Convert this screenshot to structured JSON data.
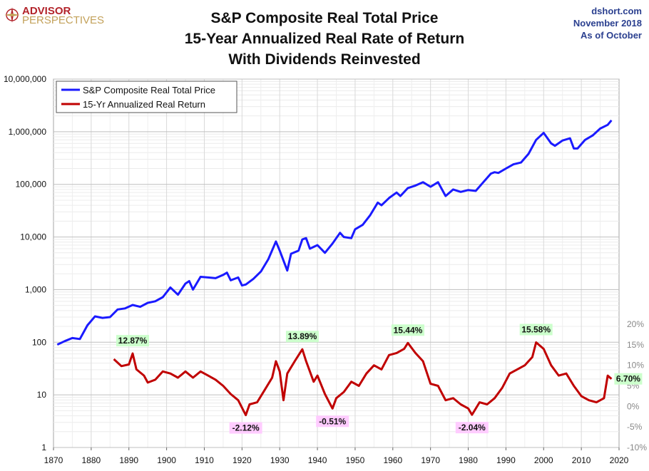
{
  "logo": {
    "line1": "ADVISOR",
    "line2": "PERSPECTIVES"
  },
  "source": {
    "site": "dshort.com",
    "date": "November 2018",
    "asof": "As of October"
  },
  "colors": {
    "price": "#1a1aff",
    "ret": "#c00000",
    "pos_bg": "#ccffcc",
    "neg_bg": "#ffccff",
    "grid": "#d9d9d9"
  },
  "chart_data": {
    "type": "line",
    "title": [
      "S&P Composite Real Total Price",
      "15-Year Annualized Real Rate of Return",
      "With Dividends Reinvested"
    ],
    "x_ticks": [
      "1870",
      "1880",
      "1890",
      "1900",
      "1910",
      "1920",
      "1930",
      "1940",
      "1950",
      "1960",
      "1970",
      "1980",
      "1990",
      "2000",
      "2010",
      "2020"
    ],
    "y_left_ticks": [
      "1",
      "10",
      "100",
      "1,000",
      "10,000",
      "100,000",
      "1,000,000",
      "10,000,000"
    ],
    "y_right_ticks": [
      "20%",
      "15%",
      "10%",
      "5%",
      "0%",
      "-5%",
      "-10%"
    ],
    "xlim": [
      1870,
      2020
    ],
    "y_left_scale": "log",
    "y_left_lim": [
      1,
      10000000
    ],
    "y_right_lim": [
      -10,
      20
    ],
    "legend_position": "top-left",
    "series": [
      {
        "name": "S&P Composite Real Total Price",
        "axis": "left",
        "points": [
          [
            1871,
            90
          ],
          [
            1873,
            105
          ],
          [
            1875,
            120
          ],
          [
            1877,
            115
          ],
          [
            1879,
            210
          ],
          [
            1881,
            310
          ],
          [
            1883,
            290
          ],
          [
            1885,
            300
          ],
          [
            1887,
            420
          ],
          [
            1889,
            440
          ],
          [
            1891,
            510
          ],
          [
            1893,
            470
          ],
          [
            1895,
            560
          ],
          [
            1897,
            600
          ],
          [
            1899,
            720
          ],
          [
            1901,
            1100
          ],
          [
            1903,
            800
          ],
          [
            1905,
            1300
          ],
          [
            1906,
            1450
          ],
          [
            1907,
            1000
          ],
          [
            1909,
            1750
          ],
          [
            1911,
            1700
          ],
          [
            1913,
            1650
          ],
          [
            1915,
            1900
          ],
          [
            1916,
            2100
          ],
          [
            1917,
            1500
          ],
          [
            1919,
            1700
          ],
          [
            1920,
            1200
          ],
          [
            1921,
            1250
          ],
          [
            1923,
            1600
          ],
          [
            1925,
            2200
          ],
          [
            1927,
            3800
          ],
          [
            1929,
            8200
          ],
          [
            1930,
            5500
          ],
          [
            1932,
            2300
          ],
          [
            1933,
            4800
          ],
          [
            1935,
            5500
          ],
          [
            1936,
            9000
          ],
          [
            1937,
            9500
          ],
          [
            1938,
            6000
          ],
          [
            1940,
            7000
          ],
          [
            1942,
            5000
          ],
          [
            1944,
            7500
          ],
          [
            1946,
            12000
          ],
          [
            1947,
            10000
          ],
          [
            1949,
            9500
          ],
          [
            1950,
            14000
          ],
          [
            1952,
            17000
          ],
          [
            1954,
            26000
          ],
          [
            1956,
            45000
          ],
          [
            1957,
            40000
          ],
          [
            1959,
            55000
          ],
          [
            1961,
            70000
          ],
          [
            1962,
            60000
          ],
          [
            1964,
            85000
          ],
          [
            1966,
            95000
          ],
          [
            1968,
            110000
          ],
          [
            1970,
            90000
          ],
          [
            1972,
            110000
          ],
          [
            1974,
            60000
          ],
          [
            1976,
            80000
          ],
          [
            1978,
            72000
          ],
          [
            1980,
            78000
          ],
          [
            1982,
            75000
          ],
          [
            1984,
            110000
          ],
          [
            1986,
            160000
          ],
          [
            1987,
            170000
          ],
          [
            1988,
            165000
          ],
          [
            1990,
            200000
          ],
          [
            1992,
            240000
          ],
          [
            1994,
            260000
          ],
          [
            1996,
            380000
          ],
          [
            1998,
            700000
          ],
          [
            2000,
            950000
          ],
          [
            2002,
            600000
          ],
          [
            2003,
            540000
          ],
          [
            2005,
            680000
          ],
          [
            2007,
            750000
          ],
          [
            2008,
            480000
          ],
          [
            2009,
            480000
          ],
          [
            2011,
            700000
          ],
          [
            2013,
            850000
          ],
          [
            2015,
            1150000
          ],
          [
            2017,
            1350000
          ],
          [
            2018,
            1650000
          ]
        ]
      },
      {
        "name": "15-Yr Annualized Real Return",
        "axis": "right",
        "points": [
          [
            1886,
            11.5
          ],
          [
            1888,
            9.8
          ],
          [
            1890,
            10.2
          ],
          [
            1891,
            12.87
          ],
          [
            1892,
            9.0
          ],
          [
            1894,
            7.5
          ],
          [
            1895,
            5.8
          ],
          [
            1897,
            6.5
          ],
          [
            1899,
            8.5
          ],
          [
            1901,
            8.0
          ],
          [
            1903,
            7.0
          ],
          [
            1905,
            8.5
          ],
          [
            1907,
            7.0
          ],
          [
            1909,
            8.5
          ],
          [
            1911,
            7.5
          ],
          [
            1913,
            6.5
          ],
          [
            1915,
            5.0
          ],
          [
            1917,
            3.0
          ],
          [
            1919,
            1.5
          ],
          [
            1921,
            -2.12
          ],
          [
            1922,
            0.5
          ],
          [
            1924,
            1.0
          ],
          [
            1926,
            4.0
          ],
          [
            1928,
            7.0
          ],
          [
            1929,
            11.0
          ],
          [
            1930,
            8.5
          ],
          [
            1931,
            1.5
          ],
          [
            1932,
            8.0
          ],
          [
            1934,
            11.0
          ],
          [
            1936,
            13.89
          ],
          [
            1937,
            11.0
          ],
          [
            1939,
            6.0
          ],
          [
            1940,
            7.5
          ],
          [
            1942,
            3.0
          ],
          [
            1944,
            -0.51
          ],
          [
            1945,
            2.0
          ],
          [
            1947,
            3.5
          ],
          [
            1949,
            6.0
          ],
          [
            1951,
            5.0
          ],
          [
            1953,
            8.0
          ],
          [
            1955,
            10.0
          ],
          [
            1957,
            9.0
          ],
          [
            1959,
            12.5
          ],
          [
            1961,
            13.0
          ],
          [
            1963,
            14.0
          ],
          [
            1964,
            15.44
          ],
          [
            1966,
            13.0
          ],
          [
            1968,
            11.0
          ],
          [
            1970,
            5.5
          ],
          [
            1972,
            5.0
          ],
          [
            1974,
            1.5
          ],
          [
            1976,
            2.0
          ],
          [
            1978,
            0.5
          ],
          [
            1980,
            -0.5
          ],
          [
            1981,
            -2.04
          ],
          [
            1983,
            1.0
          ],
          [
            1985,
            0.5
          ],
          [
            1987,
            2.0
          ],
          [
            1989,
            4.5
          ],
          [
            1991,
            8.0
          ],
          [
            1993,
            9.0
          ],
          [
            1995,
            10.0
          ],
          [
            1997,
            12.0
          ],
          [
            1998,
            15.58
          ],
          [
            2000,
            14.0
          ],
          [
            2002,
            10.0
          ],
          [
            2004,
            7.5
          ],
          [
            2006,
            8.0
          ],
          [
            2008,
            5.0
          ],
          [
            2010,
            2.5
          ],
          [
            2012,
            1.5
          ],
          [
            2014,
            1.0
          ],
          [
            2016,
            2.0
          ],
          [
            2017,
            7.5
          ],
          [
            2018,
            6.7
          ]
        ]
      }
    ],
    "annotations": [
      {
        "text": "12.87%",
        "x": 1891,
        "y": 12.87,
        "kind": "pos"
      },
      {
        "text": "-2.12%",
        "x": 1921,
        "y": -2.12,
        "kind": "neg"
      },
      {
        "text": "13.89%",
        "x": 1936,
        "y": 13.89,
        "kind": "pos"
      },
      {
        "text": "-0.51%",
        "x": 1944,
        "y": -0.51,
        "kind": "neg"
      },
      {
        "text": "15.44%",
        "x": 1964,
        "y": 15.44,
        "kind": "pos"
      },
      {
        "text": "-2.04%",
        "x": 1981,
        "y": -2.04,
        "kind": "neg"
      },
      {
        "text": "15.58%",
        "x": 1998,
        "y": 15.58,
        "kind": "pos"
      },
      {
        "text": "6.70%",
        "x": 2018,
        "y": 6.7,
        "kind": "pos"
      }
    ]
  }
}
